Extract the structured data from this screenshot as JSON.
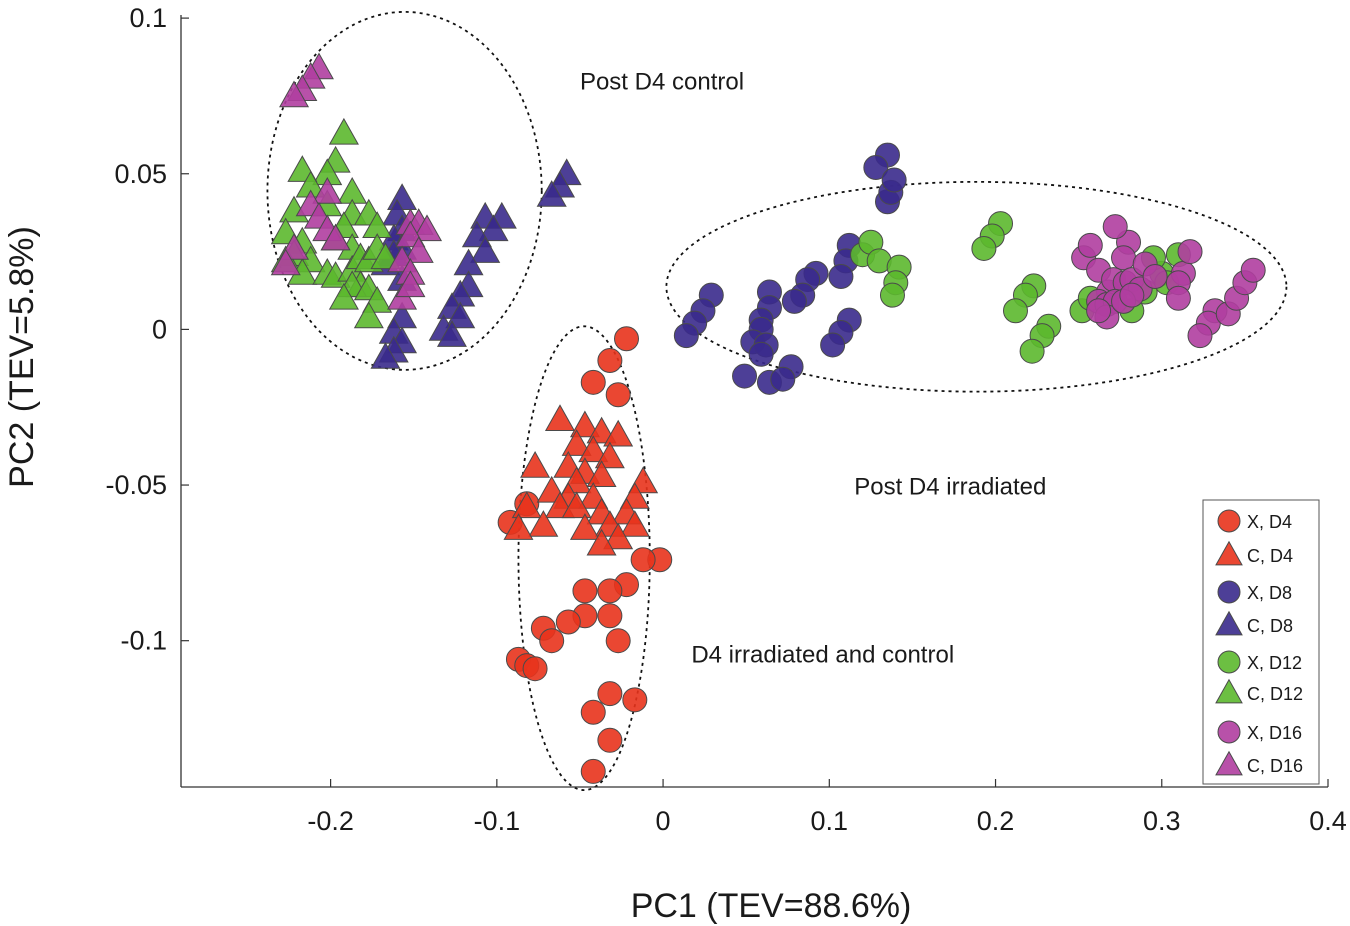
{
  "chart_data": {
    "type": "scatter",
    "title": "",
    "xlabel": "PC1 (TEV=88.6%)",
    "ylabel": "PC2 (TEV=5.8%)",
    "xlim": [
      -0.29,
      0.4
    ],
    "ylim": [
      -0.147,
      0.101
    ],
    "xticks": [
      -0.2,
      -0.1,
      0,
      0.1,
      0.2,
      0.3,
      0.4
    ],
    "xtick_labels": [
      "-0.2",
      "-0.1",
      "0",
      "0.1",
      "0.2",
      "0.3",
      "0.4"
    ],
    "yticks": [
      -0.1,
      -0.05,
      0,
      0.05,
      0.1
    ],
    "ytick_labels": [
      "-0.1",
      "-0.05",
      "0",
      "0.05",
      "0.1"
    ],
    "legend_position": "bottom-right",
    "colors": {
      "D4": "#e8331c",
      "D8": "#3a2a8c",
      "D12": "#5cb82e",
      "D16": "#b03ea0"
    },
    "series": [
      {
        "name": "X, D4",
        "marker": "circle",
        "color": "#e8331c",
        "points": [
          [
            -0.022,
            -0.003
          ],
          [
            -0.032,
            -0.01
          ],
          [
            -0.042,
            -0.017
          ],
          [
            -0.027,
            -0.021
          ],
          [
            -0.092,
            -0.062
          ],
          [
            -0.082,
            -0.056
          ],
          [
            -0.002,
            -0.074
          ],
          [
            -0.012,
            -0.074
          ],
          [
            -0.022,
            -0.082
          ],
          [
            -0.032,
            -0.084
          ],
          [
            -0.047,
            -0.084
          ],
          [
            -0.047,
            -0.092
          ],
          [
            -0.032,
            -0.092
          ],
          [
            -0.057,
            -0.094
          ],
          [
            -0.072,
            -0.096
          ],
          [
            -0.067,
            -0.1
          ],
          [
            -0.027,
            -0.1
          ],
          [
            -0.087,
            -0.106
          ],
          [
            -0.082,
            -0.108
          ],
          [
            -0.077,
            -0.109
          ],
          [
            -0.017,
            -0.119
          ],
          [
            -0.032,
            -0.117
          ],
          [
            -0.042,
            -0.123
          ],
          [
            -0.032,
            -0.132
          ],
          [
            -0.042,
            -0.142
          ]
        ]
      },
      {
        "name": "C, D4",
        "marker": "triangle",
        "color": "#e8331c",
        "points": [
          [
            -0.062,
            -0.029
          ],
          [
            -0.047,
            -0.031
          ],
          [
            -0.037,
            -0.033
          ],
          [
            -0.027,
            -0.034
          ],
          [
            -0.052,
            -0.037
          ],
          [
            -0.042,
            -0.039
          ],
          [
            -0.032,
            -0.041
          ],
          [
            -0.057,
            -0.044
          ],
          [
            -0.077,
            -0.044
          ],
          [
            -0.047,
            -0.046
          ],
          [
            -0.037,
            -0.047
          ],
          [
            -0.052,
            -0.049
          ],
          [
            -0.012,
            -0.049
          ],
          [
            -0.067,
            -0.052
          ],
          [
            -0.057,
            -0.054
          ],
          [
            -0.042,
            -0.054
          ],
          [
            -0.017,
            -0.054
          ],
          [
            -0.082,
            -0.057
          ],
          [
            -0.062,
            -0.057
          ],
          [
            -0.052,
            -0.057
          ],
          [
            -0.037,
            -0.059
          ],
          [
            -0.022,
            -0.059
          ],
          [
            -0.072,
            -0.063
          ],
          [
            -0.032,
            -0.063
          ],
          [
            -0.017,
            -0.063
          ],
          [
            -0.087,
            -0.064
          ],
          [
            -0.047,
            -0.064
          ],
          [
            -0.027,
            -0.067
          ],
          [
            -0.037,
            -0.069
          ]
        ]
      },
      {
        "name": "X, D8",
        "marker": "circle",
        "color": "#3a2a8c",
        "points": [
          [
            0.135,
            0.056
          ],
          [
            0.128,
            0.052
          ],
          [
            0.135,
            0.041
          ],
          [
            0.137,
            0.044
          ],
          [
            0.139,
            0.048
          ],
          [
            0.112,
            0.027
          ],
          [
            0.11,
            0.022
          ],
          [
            0.107,
            0.017
          ],
          [
            0.092,
            0.018
          ],
          [
            0.087,
            0.016
          ],
          [
            0.084,
            0.011
          ],
          [
            0.079,
            0.009
          ],
          [
            0.064,
            0.012
          ],
          [
            0.064,
            0.007
          ],
          [
            0.059,
            0.003
          ],
          [
            0.059,
            0.0
          ],
          [
            0.054,
            -0.004
          ],
          [
            0.062,
            -0.005
          ],
          [
            0.029,
            0.011
          ],
          [
            0.024,
            0.006
          ],
          [
            0.019,
            0.002
          ],
          [
            0.014,
            -0.002
          ],
          [
            0.112,
            0.003
          ],
          [
            0.107,
            -0.001
          ],
          [
            0.102,
            -0.005
          ],
          [
            0.059,
            -0.008
          ],
          [
            0.049,
            -0.015
          ],
          [
            0.064,
            -0.017
          ],
          [
            0.077,
            -0.012
          ],
          [
            0.072,
            -0.016
          ]
        ]
      },
      {
        "name": "C, D8",
        "marker": "triangle",
        "color": "#3a2a8c",
        "points": [
          [
            -0.058,
            0.05
          ],
          [
            -0.062,
            0.046
          ],
          [
            -0.067,
            0.043
          ],
          [
            -0.157,
            0.042
          ],
          [
            -0.16,
            0.037
          ],
          [
            -0.097,
            0.036
          ],
          [
            -0.107,
            0.036
          ],
          [
            -0.102,
            0.032
          ],
          [
            -0.112,
            0.03
          ],
          [
            -0.107,
            0.025
          ],
          [
            -0.117,
            0.021
          ],
          [
            -0.157,
            0.032
          ],
          [
            -0.162,
            0.029
          ],
          [
            -0.157,
            0.026
          ],
          [
            -0.162,
            0.024
          ],
          [
            -0.167,
            0.021
          ],
          [
            -0.157,
            0.016
          ],
          [
            -0.117,
            0.014
          ],
          [
            -0.122,
            0.011
          ],
          [
            -0.127,
            0.007
          ],
          [
            -0.122,
            0.004
          ],
          [
            -0.157,
            0.004
          ],
          [
            -0.162,
            -0.001
          ],
          [
            -0.157,
            -0.004
          ],
          [
            -0.162,
            -0.007
          ],
          [
            -0.167,
            -0.009
          ],
          [
            -0.132,
            0.0
          ],
          [
            -0.127,
            -0.002
          ]
        ]
      },
      {
        "name": "X, D12",
        "marker": "circle",
        "color": "#5cb82e",
        "points": [
          [
            0.12,
            0.024
          ],
          [
            0.125,
            0.028
          ],
          [
            0.13,
            0.022
          ],
          [
            0.142,
            0.02
          ],
          [
            0.14,
            0.015
          ],
          [
            0.138,
            0.011
          ],
          [
            0.203,
            0.034
          ],
          [
            0.198,
            0.03
          ],
          [
            0.193,
            0.026
          ],
          [
            0.223,
            0.014
          ],
          [
            0.218,
            0.011
          ],
          [
            0.212,
            0.006
          ],
          [
            0.232,
            0.001
          ],
          [
            0.228,
            -0.002
          ],
          [
            0.222,
            -0.007
          ],
          [
            0.252,
            0.006
          ],
          [
            0.257,
            0.01
          ],
          [
            0.282,
            0.006
          ],
          [
            0.29,
            0.012
          ],
          [
            0.3,
            0.018
          ],
          [
            0.303,
            0.015
          ],
          [
            0.31,
            0.024
          ],
          [
            0.295,
            0.023
          ]
        ]
      },
      {
        "name": "C, D12",
        "marker": "triangle",
        "color": "#5cb82e",
        "points": [
          [
            -0.192,
            0.063
          ],
          [
            -0.197,
            0.054
          ],
          [
            -0.202,
            0.05
          ],
          [
            -0.217,
            0.051
          ],
          [
            -0.212,
            0.046
          ],
          [
            -0.187,
            0.044
          ],
          [
            -0.187,
            0.037
          ],
          [
            -0.177,
            0.037
          ],
          [
            -0.172,
            0.033
          ],
          [
            -0.202,
            0.04
          ],
          [
            -0.192,
            0.033
          ],
          [
            -0.197,
            0.029
          ],
          [
            -0.187,
            0.026
          ],
          [
            -0.222,
            0.038
          ],
          [
            -0.227,
            0.031
          ],
          [
            -0.217,
            0.028
          ],
          [
            -0.222,
            0.024
          ],
          [
            -0.212,
            0.022
          ],
          [
            -0.227,
            0.022
          ],
          [
            -0.217,
            0.018
          ],
          [
            -0.202,
            0.018
          ],
          [
            -0.197,
            0.017
          ],
          [
            -0.187,
            0.019
          ],
          [
            -0.182,
            0.023
          ],
          [
            -0.177,
            0.022
          ],
          [
            -0.172,
            0.026
          ],
          [
            -0.167,
            0.023
          ],
          [
            -0.182,
            0.014
          ],
          [
            -0.187,
            0.014
          ],
          [
            -0.192,
            0.01
          ],
          [
            -0.177,
            0.013
          ],
          [
            -0.172,
            0.009
          ],
          [
            -0.177,
            0.004
          ]
        ]
      },
      {
        "name": "X, D16",
        "marker": "circle",
        "color": "#b03ea0",
        "points": [
          [
            0.28,
            0.028
          ],
          [
            0.272,
            0.033
          ],
          [
            0.277,
            0.023
          ],
          [
            0.253,
            0.023
          ],
          [
            0.257,
            0.027
          ],
          [
            0.262,
            0.019
          ],
          [
            0.268,
            0.012
          ],
          [
            0.271,
            0.016
          ],
          [
            0.278,
            0.015
          ],
          [
            0.282,
            0.016
          ],
          [
            0.287,
            0.013
          ],
          [
            0.29,
            0.021
          ],
          [
            0.296,
            0.017
          ],
          [
            0.262,
            0.009
          ],
          [
            0.267,
            0.008
          ],
          [
            0.272,
            0.009
          ],
          [
            0.267,
            0.004
          ],
          [
            0.262,
            0.006
          ],
          [
            0.277,
            0.009
          ],
          [
            0.282,
            0.011
          ],
          [
            0.313,
            0.018
          ],
          [
            0.317,
            0.025
          ],
          [
            0.31,
            0.015
          ],
          [
            0.31,
            0.01
          ],
          [
            0.332,
            0.006
          ],
          [
            0.328,
            0.002
          ],
          [
            0.323,
            -0.002
          ],
          [
            0.34,
            0.005
          ],
          [
            0.345,
            0.01
          ],
          [
            0.35,
            0.015
          ],
          [
            0.355,
            0.019
          ]
        ]
      },
      {
        "name": "C, D16",
        "marker": "triangle",
        "color": "#b03ea0",
        "points": [
          [
            -0.207,
            0.084
          ],
          [
            -0.212,
            0.081
          ],
          [
            -0.217,
            0.077
          ],
          [
            -0.222,
            0.075
          ],
          [
            -0.202,
            0.044
          ],
          [
            -0.212,
            0.04
          ],
          [
            -0.207,
            0.036
          ],
          [
            -0.202,
            0.032
          ],
          [
            -0.197,
            0.029
          ],
          [
            -0.222,
            0.026
          ],
          [
            -0.227,
            0.021
          ],
          [
            -0.152,
            0.034
          ],
          [
            -0.147,
            0.034
          ],
          [
            -0.142,
            0.032
          ],
          [
            -0.152,
            0.03
          ],
          [
            -0.147,
            0.025
          ],
          [
            -0.157,
            0.022
          ],
          [
            -0.152,
            0.018
          ],
          [
            -0.157,
            0.01
          ],
          [
            -0.152,
            0.014
          ]
        ]
      }
    ],
    "annotations": [
      {
        "text": "Post D4 control",
        "anchor": [
          -0.05,
          0.077
        ]
      },
      {
        "text": "Post D4 irradiated",
        "anchor": [
          0.115,
          -0.053
        ]
      },
      {
        "text": "D4 irradiated and control",
        "anchor": [
          0.017,
          -0.107
        ]
      }
    ],
    "ellipses": [
      {
        "label": "Post D4 control",
        "center": [
          -0.1555,
          0.0445
        ],
        "radii": [
          0.0825,
          0.0575
        ]
      },
      {
        "label": "Post D4 irradiated",
        "center": [
          0.1885,
          0.0137
        ],
        "radii": [
          0.1865,
          0.0337
        ]
      },
      {
        "label": "D4 irradiated and control",
        "center": [
          -0.0475,
          -0.0735
        ],
        "radii": [
          0.0395,
          0.0745
        ]
      }
    ]
  }
}
